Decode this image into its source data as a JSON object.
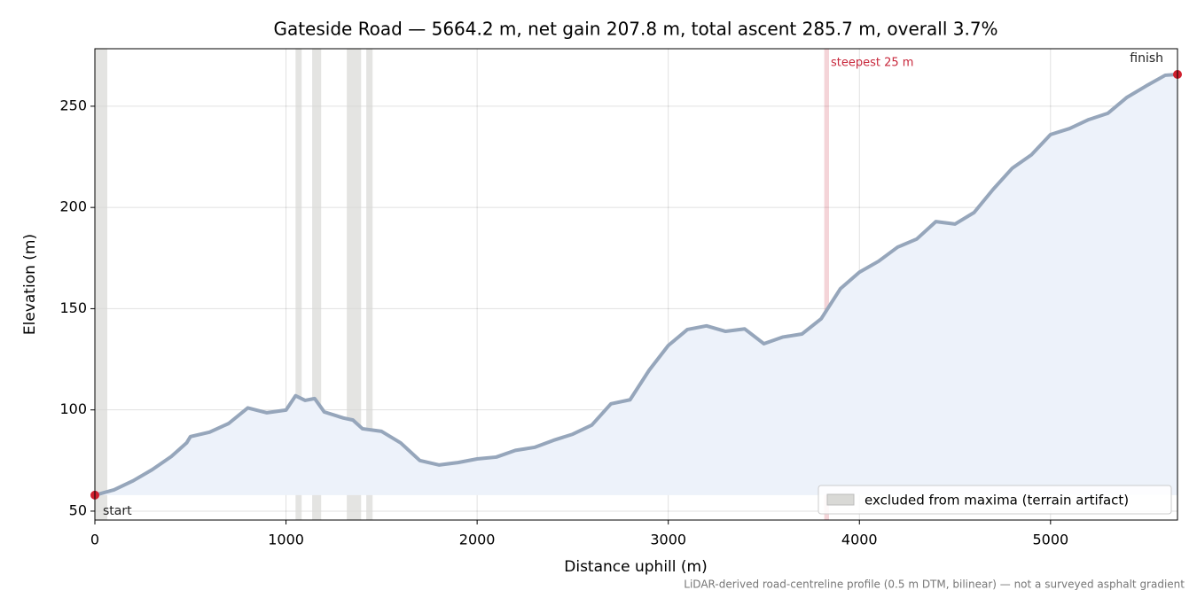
{
  "chart_data": {
    "type": "line",
    "title": "Gateside Road — 5664.2 m, net gain 207.8 m, total ascent 285.7 m, overall 3.7%",
    "xlabel": "Distance uphill (m)",
    "ylabel": "Elevation (m)",
    "footnote": "LiDAR-derived road-centreline profile (0.5 m DTM, bilinear) — not a surveyed asphalt gradient",
    "x": [
      0,
      100,
      200,
      300,
      400,
      480,
      500,
      600,
      700,
      800,
      900,
      1000,
      1050,
      1100,
      1150,
      1200,
      1300,
      1350,
      1400,
      1500,
      1600,
      1700,
      1800,
      1900,
      2000,
      2100,
      2200,
      2300,
      2400,
      2500,
      2600,
      2700,
      2800,
      2900,
      3000,
      3100,
      3200,
      3300,
      3400,
      3500,
      3600,
      3700,
      3800,
      3900,
      4000,
      4100,
      4200,
      4300,
      4400,
      4500,
      4600,
      4700,
      4800,
      4900,
      5000,
      5100,
      5200,
      5300,
      5400,
      5500,
      5600,
      5664.2
    ],
    "series": [
      {
        "name": "elevation",
        "color": "#96a6bb",
        "values": [
          57.9,
          60.5,
          65,
          70.5,
          77,
          83.7,
          86.8,
          89,
          93.3,
          101,
          98.6,
          99.9,
          107,
          104.7,
          105.6,
          99,
          96,
          95,
          90.7,
          89.4,
          83.7,
          75,
          72.8,
          74,
          75.8,
          76.7,
          80,
          81.5,
          85,
          88,
          92.5,
          103,
          105,
          119.6,
          131.8,
          139.7,
          141.5,
          138.8,
          140,
          132.7,
          136,
          137.5,
          145,
          159.8,
          168,
          173.4,
          180.4,
          184.4,
          193,
          191.8,
          197.5,
          209,
          219.4,
          226,
          236,
          239,
          243.4,
          246.5,
          254.4,
          260,
          265.3,
          265.7
        ]
      }
    ],
    "excluded": {
      "name": "excluded from maxima (terrain artifact)",
      "color": "#d9d9d6",
      "spans": [
        [
          0,
          65
        ],
        [
          1050,
          1082
        ],
        [
          1137,
          1184
        ],
        [
          1318,
          1393
        ],
        [
          1420,
          1453
        ]
      ]
    },
    "steepest": {
      "label": "steepest 25 m",
      "color": "#c8283c",
      "span": [
        3816,
        3841
      ]
    },
    "start_label": "start",
    "finish_label": "finish",
    "marker_color": "#d0202e",
    "fill_color": "#edf2fa",
    "xlim": [
      0,
      5664.2
    ],
    "ylim": [
      45.6,
      278.4
    ],
    "xticks": [
      0,
      1000,
      2000,
      3000,
      4000,
      5000
    ],
    "yticks": [
      50,
      100,
      150,
      200,
      250
    ],
    "grid": true,
    "legend": "lower right"
  }
}
